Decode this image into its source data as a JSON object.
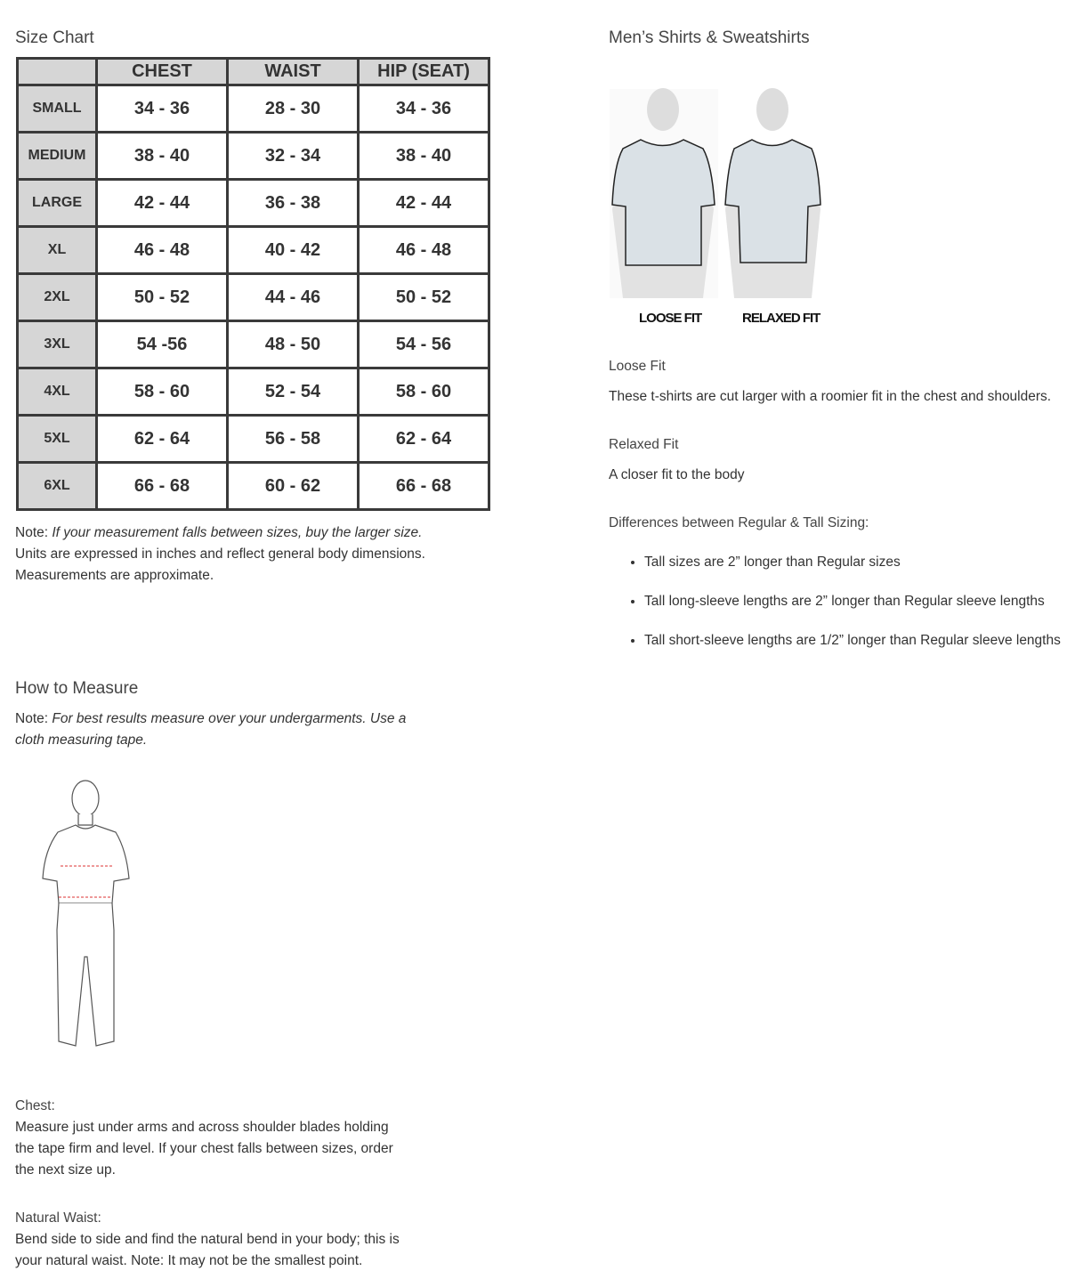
{
  "size_chart": {
    "title": "Size Chart",
    "headers": [
      "",
      "CHEST",
      "WAIST",
      "HIP (SEAT)"
    ],
    "rows": [
      {
        "size": "SMALL",
        "chest": "34 - 36",
        "waist": "28 - 30",
        "hip": "34 - 36"
      },
      {
        "size": "MEDIUM",
        "chest": "38 - 40",
        "waist": "32 - 34",
        "hip": "38 - 40"
      },
      {
        "size": "LARGE",
        "chest": "42 - 44",
        "waist": "36 - 38",
        "hip": "42 - 44"
      },
      {
        "size": "XL",
        "chest": "46 - 48",
        "waist": "40 - 42",
        "hip": "46 - 48"
      },
      {
        "size": "2XL",
        "chest": "50 - 52",
        "waist": "44 - 46",
        "hip": "50 - 52"
      },
      {
        "size": "3XL",
        "chest": "54 -56",
        "waist": "48 - 50",
        "hip": "54 - 56"
      },
      {
        "size": "4XL",
        "chest": "58 - 60",
        "waist": "52 - 54",
        "hip": "58 - 60"
      },
      {
        "size": "5XL",
        "chest": "62 - 64",
        "waist": "56 - 58",
        "hip": "62 - 64"
      },
      {
        "size": "6XL",
        "chest": "66 - 68",
        "waist": "60 - 62",
        "hip": "66 - 68"
      }
    ],
    "note_label": "Note:",
    "note_italic": "If your measurement falls between sizes, buy the larger size.",
    "note_line2": "Units are expressed in inches and reflect general body dimensions.",
    "note_line3": "Measurements are approximate."
  },
  "fit": {
    "title": "Men’s Shirts & Sweatshirts",
    "loose_label": "LOOSE FIT",
    "relaxed_label": "RELAXED FIT",
    "loose_title": "Loose Fit",
    "loose_desc": "These t-shirts are cut larger with a roomier fit in the chest and shoulders.",
    "relaxed_title": "Relaxed Fit",
    "relaxed_desc": "A closer fit to the body",
    "diff_title": "Differences between Regular & Tall Sizing:",
    "bullets": [
      "Tall sizes are 2” longer than Regular sizes",
      "Tall long-sleeve lengths are 2” longer than Regular sleeve lengths",
      "Tall short-sleeve lengths are 1/2” longer than Regular sleeve lengths"
    ]
  },
  "measure": {
    "title": "How to Measure",
    "note_label": "Note:",
    "note_italic": "For best results measure over your undergarments. Use a cloth measuring tape.",
    "chest_title": "Chest:",
    "chest_desc": "Measure just under arms and across shoulder blades holding the tape firm and level. If your chest falls between sizes, order the next size up.",
    "waist_title": "Natural Waist:",
    "waist_desc_a": "Bend side to side and find the natural bend in your body; this is your natural waist.",
    "waist_note_label": "Note:",
    "waist_desc_b": "It may not be the smallest point."
  }
}
